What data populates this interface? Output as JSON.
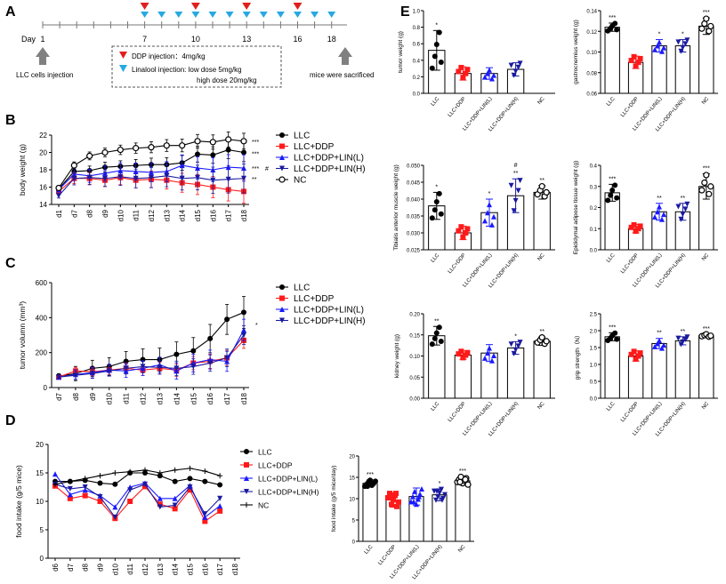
{
  "colors": {
    "LLC": "#000000",
    "LLC+DDP": "#ff1a1a",
    "LIN_L": "#1a1aff",
    "LIN_H": "#1a1aa0",
    "NC": "#000000",
    "triangle_red": "#e0201e",
    "triangle_blue": "#26a9e0"
  },
  "panelA": {
    "letter": "A",
    "day_label": "Day",
    "day_ticks": [
      "1",
      "7",
      "10",
      "13",
      "16",
      "18"
    ],
    "ddp_days": [
      7,
      10,
      13,
      16
    ],
    "lin_days": [
      7,
      8,
      9,
      10,
      11,
      12,
      13,
      14,
      15,
      16,
      17,
      18
    ],
    "left_arrow_label": "LLC cells injection",
    "right_arrow_label": "mice were sacrificed",
    "box_line1": "DDP injection：4mg/kg",
    "box_line2": "Linalool injection: low dose 5mg/kg",
    "box_line3": "high dose 20mg/kg"
  },
  "series_names": [
    "LLC",
    "LLC+DDP",
    "LLC+DDP+LIN(L)",
    "LLC+DDP+LIN(H)",
    "NC"
  ],
  "bar_groups": [
    "LLC",
    "LLC+DDP",
    "LLC+DDP+LIN(L)",
    "LLC+DDP+LIN(H)",
    "NC"
  ],
  "chart_data": [
    {
      "panel": "B",
      "type": "line",
      "ylabel": "body weight (g)",
      "ylim": [
        14,
        22
      ],
      "yticks": [
        "14",
        "16",
        "18",
        "20",
        "22"
      ],
      "categories": [
        "d1",
        "d7",
        "d8",
        "d9",
        "d10",
        "d11",
        "d12",
        "d13",
        "d14",
        "d15",
        "d16",
        "d17",
        "d18"
      ],
      "series": [
        {
          "name": "LLC",
          "values": [
            15.8,
            17.8,
            17.9,
            18.3,
            18.4,
            18.5,
            18.6,
            18.6,
            18.8,
            19.8,
            19.7,
            20.3,
            20.0
          ]
        },
        {
          "name": "LLC+DDP",
          "values": [
            15.5,
            17.0,
            17.0,
            16.8,
            17.1,
            16.8,
            16.9,
            16.8,
            16.5,
            16.3,
            16.0,
            15.7,
            15.5
          ]
        },
        {
          "name": "LLC+DDP+LIN(L)",
          "values": [
            15.7,
            17.5,
            17.3,
            17.6,
            17.9,
            17.8,
            17.7,
            17.8,
            18.5,
            18.2,
            18.0,
            18.3,
            18.2
          ]
        },
        {
          "name": "LLC+DDP+LIN(H)",
          "values": [
            15.0,
            17.0,
            17.1,
            17.0,
            17.2,
            17.0,
            17.1,
            17.3,
            17.0,
            17.1,
            16.8,
            16.9,
            17.0
          ]
        },
        {
          "name": "NC",
          "values": [
            15.9,
            18.5,
            19.6,
            20.0,
            20.3,
            20.5,
            20.6,
            20.8,
            20.8,
            21.3,
            21.2,
            21.5,
            21.3
          ]
        }
      ],
      "annotations": [
        "***",
        "***",
        "***",
        "#",
        "**"
      ]
    },
    {
      "panel": "C",
      "type": "line",
      "ylabel": "tumor volumn (mm³)",
      "ylim": [
        0,
        600
      ],
      "yticks": [
        "0",
        "200",
        "400",
        "600"
      ],
      "categories": [
        "d7",
        "d8",
        "d9",
        "d10",
        "d11",
        "d12",
        "d13",
        "d14",
        "d15",
        "d16",
        "d17",
        "d18"
      ],
      "series": [
        {
          "name": "LLC",
          "values": [
            65,
            80,
            110,
            120,
            150,
            160,
            160,
            190,
            210,
            280,
            390,
            430
          ]
        },
        {
          "name": "LLC+DDP",
          "values": [
            60,
            95,
            90,
            100,
            110,
            100,
            110,
            100,
            140,
            150,
            170,
            270
          ]
        },
        {
          "name": "LLC+DDP+LIN(L)",
          "values": [
            60,
            75,
            85,
            100,
            95,
            110,
            130,
            95,
            140,
            160,
            150,
            330
          ]
        },
        {
          "name": "LLC+DDP+LIN(H)",
          "values": [
            60,
            70,
            80,
            95,
            110,
            120,
            115,
            110,
            120,
            140,
            170,
            300
          ]
        }
      ],
      "annotations": [
        "*"
      ]
    },
    {
      "panel": "D",
      "type": "line",
      "ylabel": "food intake (g/5 mice)",
      "ylim": [
        0,
        20
      ],
      "yticks": [
        "0",
        "5",
        "10",
        "15",
        "20"
      ],
      "categories": [
        "d6",
        "d7",
        "d8",
        "d9",
        "d10",
        "d11",
        "d12",
        "d13",
        "d14",
        "d15",
        "d16",
        "d17",
        "d18"
      ],
      "series": [
        {
          "name": "LLC",
          "values": [
            13.5,
            13.5,
            13.7,
            13.2,
            13.0,
            15.0,
            15.0,
            14.5,
            13.5,
            14.0,
            13.5,
            12.9,
            null
          ]
        },
        {
          "name": "LLC+DDP",
          "values": [
            12.7,
            10.5,
            11.0,
            10.0,
            7.0,
            10.0,
            12.6,
            9.5,
            8.7,
            12.0,
            6.5,
            8.3,
            null
          ]
        },
        {
          "name": "LLC+DDP+LIN(L)",
          "values": [
            14.8,
            11.2,
            12.0,
            11.0,
            9.0,
            12.5,
            13.2,
            10.5,
            10.5,
            12.8,
            7.2,
            9.2,
            null
          ]
        },
        {
          "name": "LLC+DDP+LIN(H)",
          "values": [
            13.0,
            12.2,
            12.5,
            10.8,
            7.2,
            12.0,
            13.0,
            9.0,
            9.3,
            12.5,
            7.8,
            10.5,
            null
          ]
        },
        {
          "name": "NC",
          "values": [
            13.0,
            13.5,
            14.0,
            14.5,
            15.0,
            15.2,
            15.5,
            15.0,
            15.5,
            15.8,
            15.3,
            14.5,
            null
          ]
        }
      ]
    },
    {
      "panel": "D-bar",
      "type": "bar",
      "ylabel": "food intake (g/5 mice/day)",
      "ylim": [
        0,
        20
      ],
      "yticks": [
        "0",
        "5",
        "10",
        "15",
        "20"
      ],
      "values": [
        13.6,
        9.7,
        10.5,
        10.9,
        14.2
      ],
      "errors": [
        0.8,
        1.7,
        2.0,
        1.4,
        1.0
      ],
      "annotations": [
        "***",
        "",
        "",
        "*",
        "***"
      ]
    },
    {
      "panel": "E-tumor",
      "type": "bar",
      "ylabel": "tumor weight (g)",
      "ylim": [
        0,
        1.0
      ],
      "yticks": [
        "0.0",
        "0.2",
        "0.4",
        "0.6",
        "0.8",
        "1.0"
      ],
      "values": [
        0.52,
        0.24,
        0.24,
        0.29,
        null
      ],
      "errors": [
        0.24,
        0.08,
        0.07,
        0.08,
        null
      ],
      "annotations": [
        "*",
        "",
        "",
        "",
        ""
      ]
    },
    {
      "panel": "E-gastro",
      "type": "bar",
      "ylabel": "gastrocnemius weight (g)",
      "ylim": [
        0.06,
        0.14
      ],
      "yticks": [
        "0.06",
        "0.08",
        "0.10",
        "0.12",
        "0.14"
      ],
      "values": [
        0.124,
        0.09,
        0.106,
        0.106,
        0.125
      ],
      "errors": [
        0.004,
        0.006,
        0.006,
        0.006,
        0.008
      ],
      "annotations": [
        "***",
        "",
        "*",
        "*",
        "***"
      ]
    },
    {
      "panel": "E-tibialis",
      "type": "bar",
      "ylabel": "Tibialis anterior muscle weight (g)",
      "ylim": [
        0.025,
        0.05
      ],
      "yticks": [
        "0.025",
        "0.030",
        "0.035",
        "0.040",
        "0.045",
        "0.050"
      ],
      "values": [
        0.038,
        0.03,
        0.036,
        0.041,
        0.042
      ],
      "errors": [
        0.004,
        0.002,
        0.004,
        0.005,
        0.002
      ],
      "annotations": [
        "*",
        "",
        "*",
        "#\n**",
        "**"
      ]
    },
    {
      "panel": "E-epididymal",
      "type": "bar",
      "ylabel": "Epididymal adipose tissue weight (g)",
      "ylim": [
        0,
        0.4
      ],
      "yticks": [
        "0.0",
        "0.1",
        "0.2",
        "0.3",
        "0.4"
      ],
      "values": [
        0.27,
        0.1,
        0.18,
        0.18,
        0.3
      ],
      "errors": [
        0.04,
        0.02,
        0.04,
        0.04,
        0.06
      ],
      "annotations": [
        "***",
        "",
        "**",
        "**",
        "***"
      ]
    },
    {
      "panel": "E-kidney",
      "type": "bar",
      "ylabel": "kidney weight (g)",
      "ylim": [
        0,
        0.2
      ],
      "yticks": [
        "0.00",
        "0.05",
        "0.10",
        "0.15",
        "0.20"
      ],
      "values": [
        0.148,
        0.102,
        0.107,
        0.119,
        0.135
      ],
      "errors": [
        0.022,
        0.01,
        0.02,
        0.015,
        0.01
      ],
      "annotations": [
        "**",
        "",
        "",
        "*",
        "**"
      ]
    },
    {
      "panel": "E-grip",
      "type": "bar",
      "ylabel": "grip strength（N）",
      "ylim": [
        0,
        2.5
      ],
      "yticks": [
        "0.0",
        "0.5",
        "1.0",
        "1.5",
        "2.0",
        "2.5"
      ],
      "values": [
        1.82,
        1.25,
        1.62,
        1.7,
        1.85
      ],
      "errors": [
        0.12,
        0.15,
        0.15,
        0.12,
        0.05
      ],
      "annotations": [
        "***",
        "",
        "**",
        "**",
        "***"
      ]
    }
  ]
}
